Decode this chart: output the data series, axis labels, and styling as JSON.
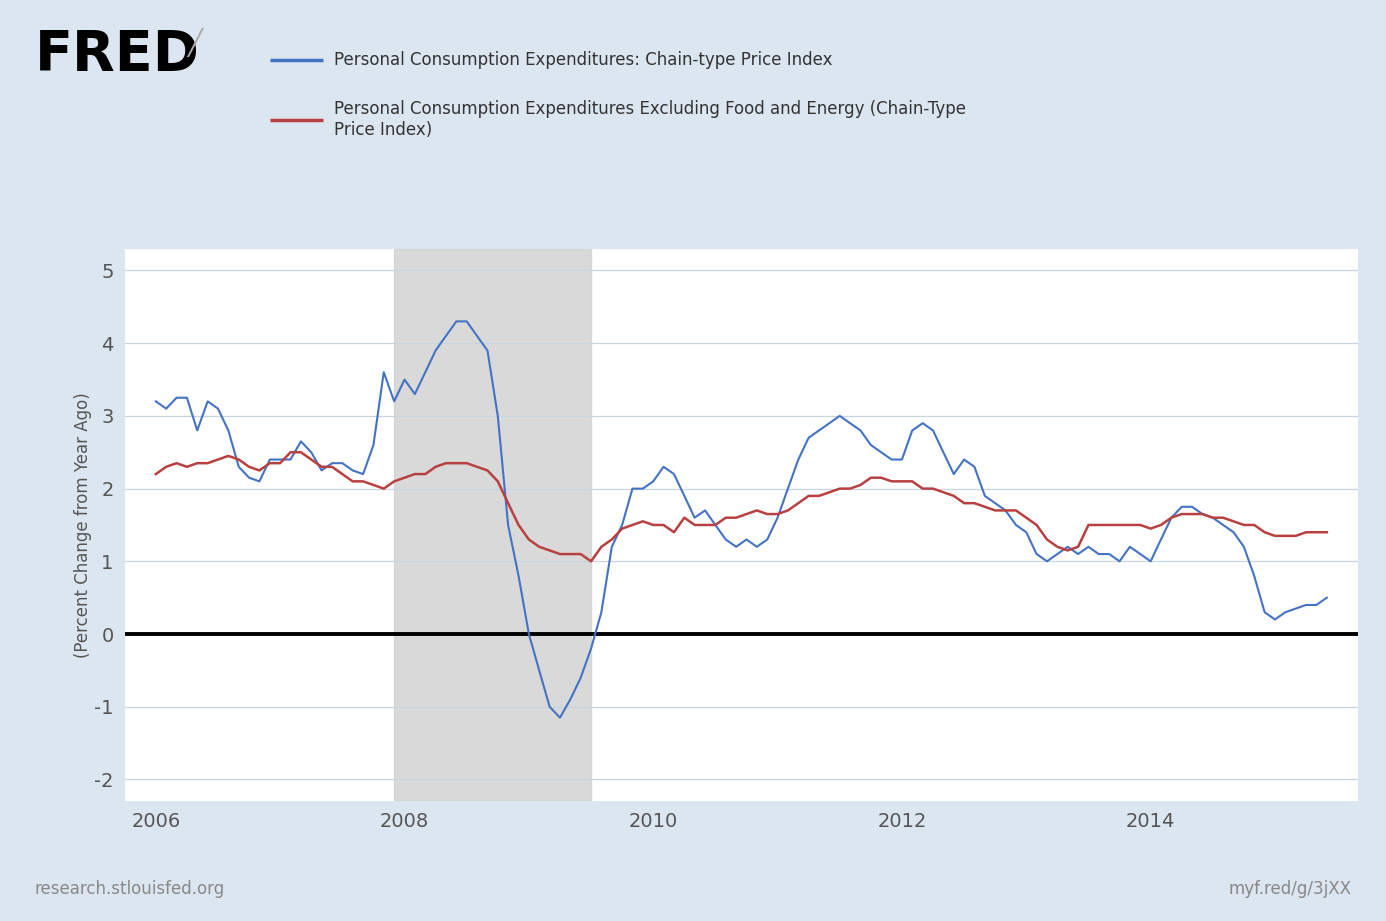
{
  "legend_line1": "Personal Consumption Expenditures: Chain-type Price Index",
  "legend_line2": "Personal Consumption Expenditures Excluding Food and Energy (Chain-Type\nPrice Index)",
  "ylabel": "(Percent Change from Year Ago)",
  "xlabel_bottom_left": "research.stlouisfed.org",
  "xlabel_bottom_right": "myf.red/g/3jXX",
  "ylim": [
    -2.3,
    5.3
  ],
  "yticks": [
    -2,
    -1,
    0,
    1,
    2,
    3,
    4,
    5
  ],
  "recession_start": 2007.917,
  "recession_end": 2009.5,
  "background_color": "#dce6f0",
  "plot_background": "#ffffff",
  "blue_color": "#4472c4",
  "red_color": "#b94040",
  "pce_dates": [
    2006.0,
    2006.083,
    2006.167,
    2006.25,
    2006.333,
    2006.417,
    2006.5,
    2006.583,
    2006.667,
    2006.75,
    2006.833,
    2006.917,
    2007.0,
    2007.083,
    2007.167,
    2007.25,
    2007.333,
    2007.417,
    2007.5,
    2007.583,
    2007.667,
    2007.75,
    2007.833,
    2007.917,
    2008.0,
    2008.083,
    2008.167,
    2008.25,
    2008.333,
    2008.417,
    2008.5,
    2008.583,
    2008.667,
    2008.75,
    2008.833,
    2008.917,
    2009.0,
    2009.083,
    2009.167,
    2009.25,
    2009.333,
    2009.417,
    2009.5,
    2009.583,
    2009.667,
    2009.75,
    2009.833,
    2009.917,
    2010.0,
    2010.083,
    2010.167,
    2010.25,
    2010.333,
    2010.417,
    2010.5,
    2010.583,
    2010.667,
    2010.75,
    2010.833,
    2010.917,
    2011.0,
    2011.083,
    2011.167,
    2011.25,
    2011.333,
    2011.417,
    2011.5,
    2011.583,
    2011.667,
    2011.75,
    2011.833,
    2011.917,
    2012.0,
    2012.083,
    2012.167,
    2012.25,
    2012.333,
    2012.417,
    2012.5,
    2012.583,
    2012.667,
    2012.75,
    2012.833,
    2012.917,
    2013.0,
    2013.083,
    2013.167,
    2013.25,
    2013.333,
    2013.417,
    2013.5,
    2013.583,
    2013.667,
    2013.75,
    2013.833,
    2013.917,
    2014.0,
    2014.083,
    2014.167,
    2014.25,
    2014.333,
    2014.417,
    2014.5,
    2014.583,
    2014.667,
    2014.75,
    2014.833,
    2014.917,
    2015.0,
    2015.083,
    2015.167,
    2015.25,
    2015.333,
    2015.417
  ],
  "pce_values": [
    3.2,
    3.1,
    3.25,
    3.25,
    2.8,
    3.2,
    3.1,
    2.8,
    2.3,
    2.15,
    2.1,
    2.4,
    2.4,
    2.4,
    2.65,
    2.5,
    2.25,
    2.35,
    2.35,
    2.25,
    2.2,
    2.6,
    3.6,
    3.2,
    3.5,
    3.3,
    3.6,
    3.9,
    4.1,
    4.3,
    4.3,
    4.1,
    3.9,
    3.0,
    1.5,
    0.8,
    0.0,
    -0.5,
    -1.0,
    -1.15,
    -0.9,
    -0.6,
    -0.2,
    0.3,
    1.2,
    1.5,
    2.0,
    2.0,
    2.1,
    2.3,
    2.2,
    1.9,
    1.6,
    1.7,
    1.5,
    1.3,
    1.2,
    1.3,
    1.2,
    1.3,
    1.6,
    2.0,
    2.4,
    2.7,
    2.8,
    2.9,
    3.0,
    2.9,
    2.8,
    2.6,
    2.5,
    2.4,
    2.4,
    2.8,
    2.9,
    2.8,
    2.5,
    2.2,
    2.4,
    2.3,
    1.9,
    1.8,
    1.7,
    1.5,
    1.4,
    1.1,
    1.0,
    1.1,
    1.2,
    1.1,
    1.2,
    1.1,
    1.1,
    1.0,
    1.2,
    1.1,
    1.0,
    1.3,
    1.6,
    1.75,
    1.75,
    1.65,
    1.6,
    1.5,
    1.4,
    1.2,
    0.8,
    0.3,
    0.2,
    0.3,
    0.35,
    0.4,
    0.4,
    0.5
  ],
  "core_pce_dates": [
    2006.0,
    2006.083,
    2006.167,
    2006.25,
    2006.333,
    2006.417,
    2006.5,
    2006.583,
    2006.667,
    2006.75,
    2006.833,
    2006.917,
    2007.0,
    2007.083,
    2007.167,
    2007.25,
    2007.333,
    2007.417,
    2007.5,
    2007.583,
    2007.667,
    2007.75,
    2007.833,
    2007.917,
    2008.0,
    2008.083,
    2008.167,
    2008.25,
    2008.333,
    2008.417,
    2008.5,
    2008.583,
    2008.667,
    2008.75,
    2008.833,
    2008.917,
    2009.0,
    2009.083,
    2009.167,
    2009.25,
    2009.333,
    2009.417,
    2009.5,
    2009.583,
    2009.667,
    2009.75,
    2009.833,
    2009.917,
    2010.0,
    2010.083,
    2010.167,
    2010.25,
    2010.333,
    2010.417,
    2010.5,
    2010.583,
    2010.667,
    2010.75,
    2010.833,
    2010.917,
    2011.0,
    2011.083,
    2011.167,
    2011.25,
    2011.333,
    2011.417,
    2011.5,
    2011.583,
    2011.667,
    2011.75,
    2011.833,
    2011.917,
    2012.0,
    2012.083,
    2012.167,
    2012.25,
    2012.333,
    2012.417,
    2012.5,
    2012.583,
    2012.667,
    2012.75,
    2012.833,
    2012.917,
    2013.0,
    2013.083,
    2013.167,
    2013.25,
    2013.333,
    2013.417,
    2013.5,
    2013.583,
    2013.667,
    2013.75,
    2013.833,
    2013.917,
    2014.0,
    2014.083,
    2014.167,
    2014.25,
    2014.333,
    2014.417,
    2014.5,
    2014.583,
    2014.667,
    2014.75,
    2014.833,
    2014.917,
    2015.0,
    2015.083,
    2015.167,
    2015.25,
    2015.333,
    2015.417
  ],
  "core_pce_values": [
    2.2,
    2.3,
    2.35,
    2.3,
    2.35,
    2.35,
    2.4,
    2.45,
    2.4,
    2.3,
    2.25,
    2.35,
    2.35,
    2.5,
    2.5,
    2.4,
    2.3,
    2.3,
    2.2,
    2.1,
    2.1,
    2.05,
    2.0,
    2.1,
    2.15,
    2.2,
    2.2,
    2.3,
    2.35,
    2.35,
    2.35,
    2.3,
    2.25,
    2.1,
    1.8,
    1.5,
    1.3,
    1.2,
    1.15,
    1.1,
    1.1,
    1.1,
    1.0,
    1.2,
    1.3,
    1.45,
    1.5,
    1.55,
    1.5,
    1.5,
    1.4,
    1.6,
    1.5,
    1.5,
    1.5,
    1.6,
    1.6,
    1.65,
    1.7,
    1.65,
    1.65,
    1.7,
    1.8,
    1.9,
    1.9,
    1.95,
    2.0,
    2.0,
    2.05,
    2.15,
    2.15,
    2.1,
    2.1,
    2.1,
    2.0,
    2.0,
    1.95,
    1.9,
    1.8,
    1.8,
    1.75,
    1.7,
    1.7,
    1.7,
    1.6,
    1.5,
    1.3,
    1.2,
    1.15,
    1.2,
    1.5,
    1.5,
    1.5,
    1.5,
    1.5,
    1.5,
    1.45,
    1.5,
    1.6,
    1.65,
    1.65,
    1.65,
    1.6,
    1.6,
    1.55,
    1.5,
    1.5,
    1.4,
    1.35,
    1.35,
    1.35,
    1.4,
    1.4,
    1.4
  ],
  "xtick_positions": [
    2006,
    2008,
    2010,
    2012,
    2014
  ],
  "xtick_labels": [
    "2006",
    "2008",
    "2010",
    "2012",
    "2014"
  ]
}
